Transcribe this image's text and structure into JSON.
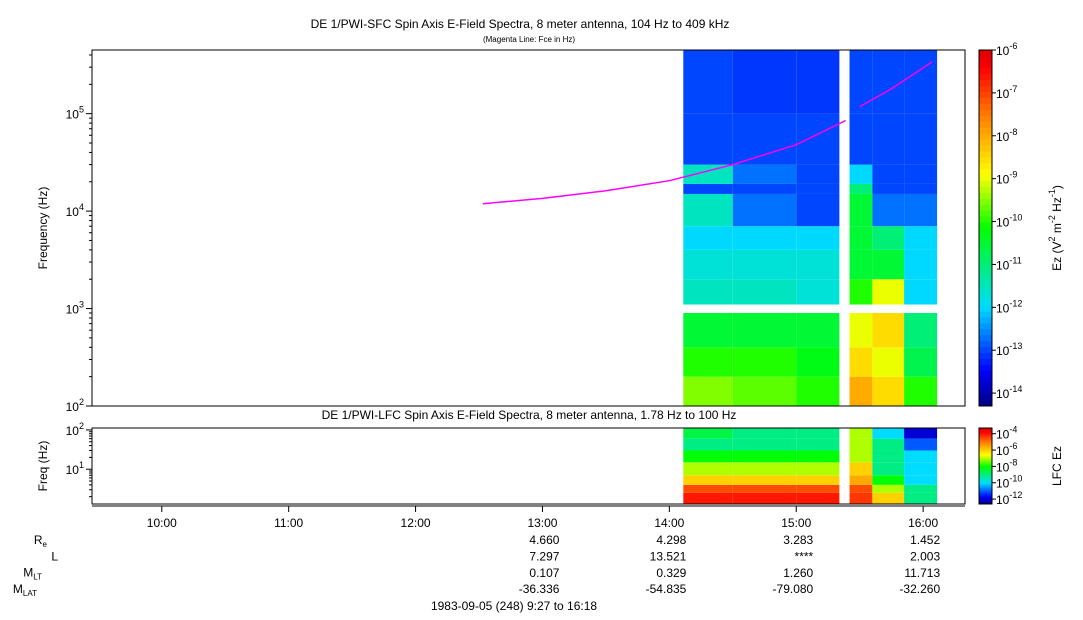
{
  "chart_data": [
    {
      "type": "spectrogram",
      "title": "DE 1/PWI-SFC  Spin Axis E-Field Spectra, 8 meter antenna, 104 Hz to 409 kHz",
      "subtitle": "(Magenta Line: Fce in Hz)",
      "ylabel": "Frequency (Hz)",
      "xlim": [
        9.45,
        16.33
      ],
      "ylim": [
        100,
        450000
      ],
      "log_y": true,
      "yticks": [
        {
          "value": 100,
          "label": "10",
          "exponent": "2"
        },
        {
          "value": 1000,
          "label": "10",
          "exponent": "3"
        },
        {
          "value": 10000,
          "label": "10",
          "exponent": "4"
        },
        {
          "value": 100000,
          "label": "10",
          "exponent": "5"
        }
      ],
      "time_edges": [
        14.11,
        14.5,
        15.0,
        15.34,
        15.42,
        15.6,
        15.85,
        16.11
      ],
      "freq_edges": [
        100,
        200,
        400,
        900,
        1100,
        2000,
        4000,
        7000,
        15000,
        19000,
        30000,
        100000,
        450000
      ],
      "z": [
        [
          3e-10,
          2e-10,
          1e-10,
          null,
          1e-08,
          3e-09,
          1e-10
        ],
        [
          1e-10,
          1e-10,
          5e-11,
          null,
          3e-09,
          1e-09,
          2e-11
        ],
        [
          3e-11,
          3e-11,
          3e-11,
          null,
          1e-09,
          3e-09,
          1e-11
        ],
        [
          null,
          null,
          null,
          null,
          null,
          null,
          null
        ],
        [
          3e-12,
          3e-12,
          2e-12,
          null,
          1e-10,
          1e-09,
          1e-12
        ],
        [
          2e-12,
          2e-12,
          2e-12,
          null,
          3e-11,
          3e-11,
          1e-12
        ],
        [
          1e-12,
          1e-12,
          1e-12,
          null,
          3e-11,
          1e-11,
          1e-12
        ],
        [
          3e-12,
          2e-13,
          1e-13,
          null,
          3e-11,
          2e-13,
          2e-13
        ],
        [
          1e-13,
          1e-13,
          1e-13,
          null,
          1e-11,
          1e-13,
          1e-13
        ],
        [
          3e-12,
          2e-13,
          1e-13,
          null,
          1e-12,
          1e-13,
          1e-13
        ],
        [
          1e-13,
          1e-13,
          1e-13,
          null,
          1e-13,
          1e-13,
          1e-13
        ],
        [
          1e-13,
          8e-14,
          8e-14,
          null,
          1e-13,
          1e-13,
          1e-13
        ]
      ],
      "zlim": [
        5e-15,
        1e-06
      ],
      "zticks": [
        {
          "value": 1e-06,
          "label": "10",
          "exponent": "-6"
        },
        {
          "value": 1e-07,
          "label": "10",
          "exponent": "-7"
        },
        {
          "value": 1e-08,
          "label": "10",
          "exponent": "-8"
        },
        {
          "value": 1e-09,
          "label": "10",
          "exponent": "-9"
        },
        {
          "value": 1e-10,
          "label": "10",
          "exponent": "-10"
        },
        {
          "value": 1e-11,
          "label": "10",
          "exponent": "-11"
        },
        {
          "value": 1e-12,
          "label": "10",
          "exponent": "-12"
        },
        {
          "value": 1e-13,
          "label": "10",
          "exponent": "-13"
        },
        {
          "value": 1e-14,
          "label": "10",
          "exponent": "-14"
        }
      ],
      "zlabel": [
        {
          "text": "Ez (V"
        },
        {
          "sup": "2"
        },
        {
          "text": " m"
        },
        {
          "sup": "-2"
        },
        {
          "text": " Hz"
        },
        {
          "sup": "-1"
        },
        {
          "text": ")"
        }
      ],
      "fce": {
        "color": "#ff00ff",
        "x": [
          12.53,
          13.0,
          13.5,
          14.0,
          14.5,
          15.0,
          15.39,
          15.45,
          15.5,
          15.75,
          16.0,
          16.07
        ],
        "values": [
          11900,
          13500,
          16200,
          20500,
          30000,
          48000,
          85000,
          null,
          118000,
          180000,
          295000,
          340000
        ]
      }
    },
    {
      "type": "spectrogram",
      "title": "DE 1/PWI-LFC  Spin Axis E-Field Spectra, 8 meter antenna, 1.78 Hz to 100 Hz",
      "ylabel": "Freq (Hz)",
      "xlim": [
        9.45,
        16.33
      ],
      "xticks": [
        {
          "value": 10,
          "label": "10:00"
        },
        {
          "value": 11,
          "label": "11:00"
        },
        {
          "value": 12,
          "label": "12:00"
        },
        {
          "value": 13,
          "label": "13:00"
        },
        {
          "value": 14,
          "label": "14:00"
        },
        {
          "value": 15,
          "label": "15:00"
        },
        {
          "value": 16,
          "label": "16:00"
        }
      ],
      "ylim": [
        1.3,
        112
      ],
      "log_y": true,
      "yticks": [
        {
          "value": 10,
          "label": "10",
          "exponent": "1"
        },
        {
          "value": 100,
          "label": "10",
          "exponent": "2"
        }
      ],
      "time_edges": [
        14.11,
        14.5,
        15.0,
        15.34,
        15.42,
        15.6,
        15.85,
        16.11
      ],
      "freq_edges": [
        1.3,
        2.5,
        4,
        7,
        15,
        30,
        60,
        112
      ],
      "z": [
        [
          0.0001,
          0.0001,
          0.0001,
          null,
          5e-05,
          1e-06,
          1e-09
        ],
        [
          3e-05,
          3e-05,
          3e-05,
          null,
          3e-05,
          1e-07,
          1e-09
        ],
        [
          1e-06,
          1e-06,
          1e-06,
          null,
          3e-06,
          1e-08,
          1e-10
        ],
        [
          1e-07,
          1e-07,
          1e-07,
          null,
          1e-06,
          1e-09,
          1e-10
        ],
        [
          1e-08,
          1e-08,
          1e-08,
          null,
          1e-07,
          1e-09,
          1e-10
        ],
        [
          1e-09,
          1e-09,
          1e-09,
          null,
          1e-07,
          1e-09,
          1e-11
        ],
        [
          3e-09,
          1e-09,
          1e-09,
          null,
          1e-07,
          1e-10,
          1e-12
        ]
      ],
      "zlim": [
        2.5e-13,
        0.0005
      ],
      "zticks": [
        {
          "value": 0.0001,
          "label": "10",
          "exponent": "-4"
        },
        {
          "value": 1e-06,
          "label": "10",
          "exponent": "-6"
        },
        {
          "value": 1e-08,
          "label": "10",
          "exponent": "-8"
        },
        {
          "value": 1e-10,
          "label": "10",
          "exponent": "-10"
        },
        {
          "value": 1e-12,
          "label": "10",
          "exponent": "-12"
        }
      ],
      "zlabel": [
        {
          "text": "LFC Ez"
        }
      ]
    }
  ],
  "ephemeris": {
    "rows": [
      {
        "label": "R",
        "sub": "e",
        "values": [
          "4.660",
          "4.298",
          "3.283",
          "1.452"
        ]
      },
      {
        "label": "L",
        "values": [
          "7.297",
          "13.521",
          "****",
          "2.003"
        ]
      },
      {
        "label": "M",
        "sub": "LT",
        "values": [
          "0.107",
          "0.329",
          "1.260",
          "11.713"
        ]
      },
      {
        "label": "M",
        "sub": "LAT",
        "values": [
          "-36.336",
          "-54.835",
          "-79.080",
          "-32.260"
        ]
      }
    ]
  },
  "footer": "1983-09-05 (248) 9:27 to 16:18"
}
